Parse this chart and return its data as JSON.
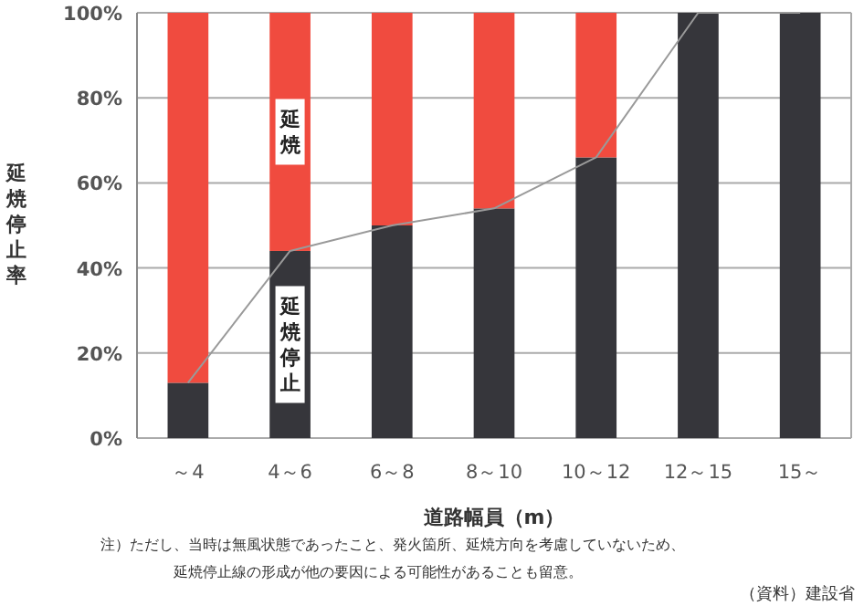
{
  "chart_data": {
    "type": "bar",
    "stacked": true,
    "categories": [
      "～4",
      "4～6",
      "6～8",
      "8～10",
      "10～12",
      "12～15",
      "15～"
    ],
    "series": [
      {
        "name": "延焼停止",
        "color": "#36363b",
        "values": [
          13,
          44,
          50,
          54,
          66,
          100,
          100
        ]
      },
      {
        "name": "延焼",
        "color": "#f04b3f",
        "values": [
          87,
          56,
          50,
          46,
          34,
          0,
          0
        ]
      },
      {
        "type": "line",
        "color": "#9a9a9a",
        "values": [
          13,
          44,
          50,
          54,
          66,
          100,
          100
        ]
      }
    ],
    "ylim": [
      0,
      100
    ],
    "yticks": [
      {
        "value": 0,
        "label": "0%"
      },
      {
        "value": 20,
        "label": "20%"
      },
      {
        "value": 40,
        "label": "40%"
      },
      {
        "value": 60,
        "label": "60%"
      },
      {
        "value": 80,
        "label": "80%"
      },
      {
        "value": 100,
        "label": "100%"
      }
    ],
    "grid": "y",
    "xlabel": "道路幅員（m）",
    "ylabel": "延焼停止率",
    "annotations": [
      "注）ただし、当時は無風状態であったこと、発火箇所、延焼方向を考慮していないため、",
      "延焼停止線の形成が他の要因による可能性があることも留意。",
      "（資料）建設省"
    ]
  }
}
